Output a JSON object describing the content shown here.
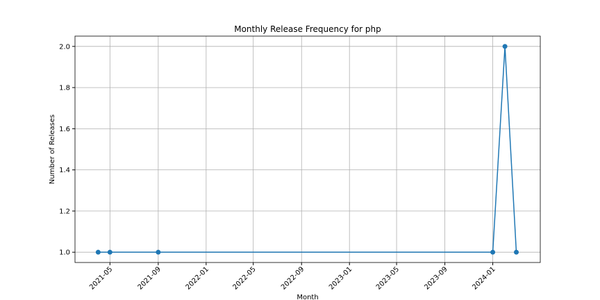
{
  "chart_data": {
    "type": "line",
    "title": "Monthly Release Frequency for php",
    "x_label": "Month",
    "y_label": "Number of Releases",
    "x": [
      "2021-04",
      "2021-05",
      "2021-09",
      "2024-01",
      "2024-02",
      "2024-03"
    ],
    "values": [
      1,
      1,
      1,
      1,
      2,
      1
    ],
    "color": "#1f77b4",
    "xlim": [
      "2021-02",
      "2024-05"
    ],
    "xticks": [
      "2021-05",
      "2021-09",
      "2022-01",
      "2022-05",
      "2022-09",
      "2023-01",
      "2023-05",
      "2023-09",
      "2024-01"
    ],
    "ylim": [
      0.95,
      2.05
    ],
    "yticks": [
      {
        "value": 1,
        "label": "1.0"
      },
      1.2,
      1.4,
      1.6,
      1.8,
      {
        "value": 2,
        "label": "2.0"
      }
    ],
    "grid": true
  }
}
